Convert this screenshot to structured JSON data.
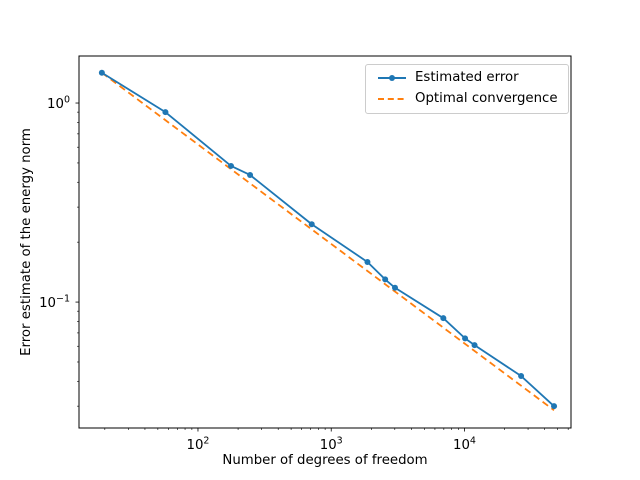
{
  "chart_data": {
    "type": "line",
    "title": "",
    "xlabel": "Number of degrees of freedom",
    "ylabel": "Error estimate of the energy norm",
    "xscale": "log",
    "yscale": "log",
    "xlim": [
      12.8,
      63000
    ],
    "ylim": [
      0.0233,
      1.723
    ],
    "x_major_ticks": [
      100,
      1000,
      10000
    ],
    "y_major_ticks": [
      1,
      0.1
    ],
    "grid": false,
    "background_color": "#ffffff",
    "spine_color": "#000000",
    "legend": {
      "position": "upper right"
    },
    "series": [
      {
        "name": "Estimated error",
        "color": "#1f77b4",
        "style": "solid",
        "marker": "circle",
        "x": [
          19,
          57,
          177,
          246,
          714,
          1870,
          2540,
          3010,
          6940,
          10100,
          11900,
          26600,
          47000
        ],
        "y": [
          1.42,
          0.9,
          0.483,
          0.435,
          0.246,
          0.159,
          0.13,
          0.118,
          0.083,
          0.0657,
          0.0608,
          0.0425,
          0.03
        ]
      },
      {
        "name": "Optimal convergence",
        "color": "#ff7f0e",
        "style": "dashed",
        "marker": "none",
        "x": [
          19,
          47000
        ],
        "y": [
          1.42,
          0.0286
        ]
      }
    ]
  }
}
